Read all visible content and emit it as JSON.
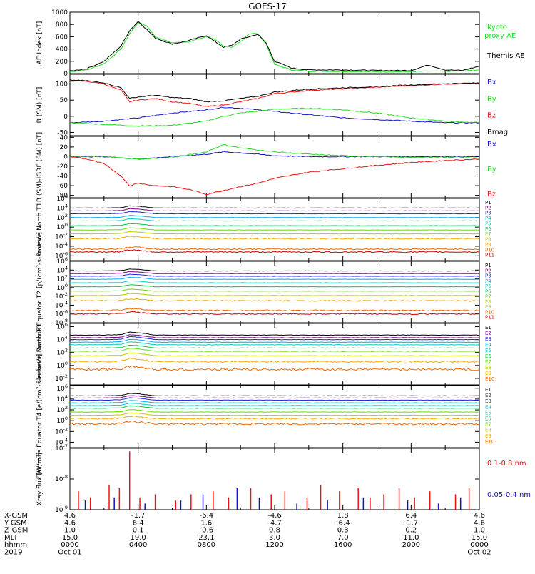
{
  "title": "GOES-17",
  "colors": {
    "black": "#000000",
    "green": "#22dd22",
    "red": "#ee1111",
    "blue": "#1111cc",
    "channel_palette": [
      "#000000",
      "#7a007a",
      "#2222dd",
      "#00aaff",
      "#00cccc",
      "#00cc44",
      "#66dd00",
      "#bbcc00",
      "#ffaa00",
      "#ee6600",
      "#cc0000"
    ]
  },
  "chart_data": [
    {
      "type": "line",
      "ylabel": "AE Index [nT]",
      "ylim": [
        0,
        1000
      ],
      "yticks": [
        {
          "v": 0,
          "label": "0"
        },
        {
          "v": 200,
          "label": "200"
        },
        {
          "v": 400,
          "label": "400"
        },
        {
          "v": 600,
          "label": "600"
        },
        {
          "v": 800,
          "label": "800"
        },
        {
          "v": 1000,
          "label": "1000"
        }
      ],
      "legend": [
        "Kyoto proxy AE",
        "Themis AE"
      ],
      "series": [
        {
          "name": "Kyoto proxy AE",
          "color": "#22dd22",
          "x": [
            0,
            1,
            2,
            3,
            3.5,
            4,
            4.5,
            5,
            6,
            7,
            8,
            8.5,
            9,
            9.5,
            10,
            10.5,
            11,
            11.5,
            12,
            13,
            14,
            16,
            18,
            20,
            21,
            22,
            23,
            24
          ],
          "y": [
            30,
            60,
            160,
            400,
            650,
            830,
            780,
            600,
            500,
            520,
            600,
            560,
            450,
            420,
            520,
            650,
            650,
            480,
            150,
            60,
            40,
            35,
            30,
            30,
            40,
            35,
            40,
            60
          ]
        },
        {
          "name": "Themis AE",
          "color": "#000000",
          "x": [
            0,
            1,
            2,
            3,
            3.5,
            4,
            4.5,
            5,
            6,
            7,
            8,
            8.5,
            9,
            9.5,
            10,
            10.5,
            11,
            11.5,
            12,
            13,
            14,
            16,
            18,
            20,
            21,
            22,
            23,
            24
          ],
          "y": [
            40,
            80,
            200,
            450,
            700,
            850,
            720,
            580,
            480,
            540,
            620,
            520,
            430,
            460,
            560,
            600,
            640,
            500,
            200,
            90,
            60,
            60,
            50,
            50,
            140,
            60,
            50,
            120
          ]
        }
      ]
    },
    {
      "type": "line",
      "ylabel": "B (SM) [nT]",
      "ylim": [
        -60,
        130
      ],
      "yticks": [
        {
          "v": -50,
          "label": "-50"
        },
        {
          "v": 0,
          "label": "0"
        },
        {
          "v": 50,
          "label": "50"
        },
        {
          "v": 100,
          "label": "100"
        }
      ],
      "legend": [
        "Bx",
        "By",
        "Bz",
        "Bmag"
      ],
      "series": [
        {
          "name": "Bx",
          "color": "#1111cc",
          "x": [
            0,
            2,
            4,
            6,
            8,
            9,
            10,
            12,
            14,
            16,
            18,
            20,
            22,
            24
          ],
          "y": [
            -20,
            -15,
            -5,
            10,
            20,
            28,
            25,
            15,
            5,
            -5,
            -10,
            -15,
            -20,
            -20
          ]
        },
        {
          "name": "By",
          "color": "#22dd22",
          "x": [
            0,
            2,
            4,
            6,
            8,
            9,
            10,
            12,
            14,
            16,
            18,
            20,
            22,
            24
          ],
          "y": [
            -20,
            -25,
            -30,
            -28,
            -15,
            0,
            10,
            22,
            25,
            20,
            10,
            -5,
            -15,
            -20
          ]
        },
        {
          "name": "Bz",
          "color": "#ee1111",
          "x": [
            0,
            1,
            2,
            3,
            3.5,
            4,
            5,
            6,
            7,
            8,
            9,
            10,
            11,
            12,
            14,
            16,
            18,
            20,
            22,
            24
          ],
          "y": [
            110,
            108,
            100,
            80,
            45,
            50,
            55,
            45,
            40,
            30,
            35,
            45,
            55,
            70,
            80,
            85,
            90,
            95,
            100,
            102
          ]
        },
        {
          "name": "Bmag",
          "color": "#000000",
          "x": [
            0,
            1,
            2,
            3,
            3.5,
            4,
            5,
            6,
            7,
            8,
            9,
            10,
            11,
            12,
            14,
            16,
            18,
            20,
            22,
            24
          ],
          "y": [
            112,
            110,
            104,
            88,
            55,
            60,
            65,
            58,
            55,
            45,
            48,
            55,
            62,
            75,
            84,
            88,
            92,
            97,
            101,
            103
          ]
        }
      ]
    },
    {
      "type": "line",
      "ylabel": "B (SM)-IGRF (SM) [nT]",
      "ylim": [
        -85,
        42
      ],
      "yticks": [
        {
          "v": -80,
          "label": "-80"
        },
        {
          "v": -60,
          "label": "-60"
        },
        {
          "v": -40,
          "label": "-40"
        },
        {
          "v": -20,
          "label": "-20"
        },
        {
          "v": 0,
          "label": "0"
        },
        {
          "v": 20,
          "label": "20"
        },
        {
          "v": 40,
          "label": "40"
        }
      ],
      "legend": [
        "Bx",
        "By",
        "Bz"
      ],
      "series": [
        {
          "name": "Bx",
          "color": "#1111cc",
          "x": [
            0,
            2,
            4,
            6,
            8,
            9,
            10,
            12,
            14,
            16,
            18,
            20,
            22,
            24
          ],
          "y": [
            0,
            0,
            -5,
            0,
            5,
            10,
            8,
            2,
            0,
            0,
            0,
            0,
            0,
            0
          ]
        },
        {
          "name": "By",
          "color": "#22dd22",
          "x": [
            0,
            2,
            4,
            6,
            8,
            9,
            10,
            12,
            14,
            16,
            18,
            20,
            22,
            24
          ],
          "y": [
            0,
            0,
            -5,
            -2,
            10,
            25,
            18,
            10,
            5,
            2,
            0,
            -2,
            -2,
            -3
          ]
        },
        {
          "name": "Bz",
          "color": "#ee1111",
          "x": [
            0,
            1,
            2,
            3,
            3.5,
            4,
            5,
            6,
            7,
            8,
            9,
            10,
            11,
            12,
            14,
            16,
            18,
            20,
            22,
            24
          ],
          "y": [
            0,
            -5,
            -15,
            -40,
            -60,
            -55,
            -60,
            -62,
            -68,
            -78,
            -70,
            -62,
            -55,
            -45,
            -32,
            -25,
            -18,
            -12,
            -8,
            -5
          ]
        }
      ]
    },
    {
      "type": "line",
      "ylabel": "Protons North T1",
      "yscale": "log",
      "ylim": [
        -7,
        6
      ],
      "yticks": [
        {
          "v": 6,
          "label": "10^6"
        },
        {
          "v": 4,
          "label": "10^4"
        },
        {
          "v": 2,
          "label": "10^2"
        },
        {
          "v": 0,
          "label": "10^0"
        },
        {
          "v": -2,
          "label": "10^-2"
        },
        {
          "v": -4,
          "label": "10^-4"
        },
        {
          "v": -6,
          "label": "10^-6"
        }
      ],
      "legend": [
        "P1",
        "P2",
        "P3",
        "P4",
        "P5",
        "P6",
        "P7",
        "P8",
        "P9",
        "P10",
        "P11"
      ],
      "base_levels": [
        4.0,
        3.4,
        2.8,
        2.0,
        1.3,
        0.3,
        -0.6,
        -1.4,
        -2.4,
        -4.6,
        -5.2
      ],
      "x": [
        0,
        2,
        3,
        3.5,
        4,
        5,
        6,
        8,
        9,
        10,
        12,
        14,
        16,
        18,
        19,
        20,
        22,
        24
      ]
    },
    {
      "type": "line",
      "ylabel": "Protons Equator T2 [p/(cm²-s-sr-keV)]",
      "yscale": "log",
      "ylim": [
        -8,
        6
      ],
      "yticks": [
        {
          "v": 6,
          "label": "10^6"
        },
        {
          "v": 4,
          "label": "10^4"
        },
        {
          "v": 2,
          "label": "10^2"
        },
        {
          "v": 0,
          "label": "10^0"
        },
        {
          "v": -2,
          "label": "10^-2"
        },
        {
          "v": -4,
          "label": "10^-4"
        },
        {
          "v": -6,
          "label": "10^-6"
        },
        {
          "v": -8,
          "label": "10^-8"
        }
      ],
      "legend": [
        "P1",
        "P2",
        "P3",
        "P4",
        "P5",
        "P6",
        "P7",
        "P8",
        "P9",
        "P10",
        "P11"
      ],
      "base_levels": [
        3.8,
        3.2,
        2.6,
        1.9,
        1.1,
        0.2,
        -0.8,
        -1.8,
        -3.0,
        -5.2,
        -6.0
      ],
      "x": [
        0,
        2,
        3,
        3.5,
        4,
        5,
        6,
        8,
        9,
        10,
        12,
        14,
        16,
        18,
        19,
        20,
        22,
        24
      ]
    },
    {
      "type": "line",
      "ylabel": "Electrons North T3",
      "yscale": "log",
      "ylim": [
        -3,
        6.5
      ],
      "yticks": [
        {
          "v": 6,
          "label": "10^6"
        },
        {
          "v": 4,
          "label": "10^4"
        },
        {
          "v": 2,
          "label": "10^2"
        },
        {
          "v": 0,
          "label": "10^0"
        },
        {
          "v": -2,
          "label": "10^-2"
        }
      ],
      "legend": [
        "E1",
        "E2",
        "E3",
        "E4",
        "E5",
        "E6",
        "E7",
        "E8",
        "E9",
        "E10"
      ],
      "base_levels": [
        4.7,
        4.3,
        4.0,
        3.6,
        3.2,
        2.7,
        2.2,
        1.5,
        0.6,
        -0.6
      ],
      "x": [
        0,
        2,
        3,
        3.5,
        4,
        5,
        6,
        8,
        9,
        10,
        11,
        12,
        14,
        16,
        18,
        20,
        22,
        24
      ]
    },
    {
      "type": "line",
      "ylabel": "Electrons Equator T4 [e/(cm²-s-sr-keV)]",
      "yscale": "log",
      "ylim": [
        -5,
        6.5
      ],
      "yticks": [
        {
          "v": 6,
          "label": "10^6"
        },
        {
          "v": 4,
          "label": "10^4"
        },
        {
          "v": 2,
          "label": "10^2"
        },
        {
          "v": 0,
          "label": "10^0"
        },
        {
          "v": -2,
          "label": "10^-2"
        },
        {
          "v": -4,
          "label": "10^-4"
        }
      ],
      "legend": [
        "E1",
        "E2",
        "E3",
        "E4",
        "E5",
        "E6",
        "E7",
        "E8",
        "E9",
        "E10"
      ],
      "base_levels": [
        4.6,
        4.2,
        3.8,
        3.3,
        2.8,
        2.3,
        1.6,
        1.0,
        0.4,
        -0.6
      ],
      "x": [
        0,
        2,
        3,
        3.5,
        4,
        5,
        6,
        8,
        9,
        10,
        11,
        12,
        14,
        16,
        18,
        20,
        22,
        24
      ]
    },
    {
      "type": "scatter",
      "ylabel": "Xray flux [W/m²]",
      "yscale": "log",
      "ylim": [
        -9,
        -7
      ],
      "yticks": [
        {
          "v": -7,
          "label": "10^-7"
        },
        {
          "v": -8,
          "label": "10^-8"
        },
        {
          "v": -9,
          "label": "10^-9"
        }
      ],
      "legend": [
        "0.1-0.8 nm",
        "0.05-0.4 nm"
      ],
      "series": [
        {
          "name": "0.1-0.8 nm",
          "color": "#ee1111",
          "x": [
            0.5,
            1.2,
            2.3,
            2.9,
            3.5,
            4.1,
            5.0,
            6.2,
            7.1,
            8.4,
            9.3,
            10.6,
            11.8,
            12.6,
            13.9,
            14.7,
            15.8,
            16.9,
            17.6,
            18.4,
            19.3,
            20.2,
            21.1,
            22.6,
            23.4
          ],
          "y": [
            -8.4,
            -8.6,
            -8.2,
            -8.3,
            -7.1,
            -8.6,
            -8.5,
            -8.7,
            -8.5,
            -8.4,
            -8.6,
            -8.3,
            -8.5,
            -8.4,
            -8.6,
            -8.2,
            -8.4,
            -8.3,
            -8.6,
            -8.5,
            -8.3,
            -8.6,
            -8.4,
            -8.5,
            -8.3
          ]
        },
        {
          "name": "0.05-0.4 nm",
          "color": "#1111cc",
          "x": [
            0.9,
            2.6,
            4.4,
            6.5,
            7.8,
            9.8,
            11.1,
            13.3,
            15.1,
            17.2,
            19.8,
            21.6,
            22.9
          ],
          "y": [
            -8.7,
            -8.6,
            -8.8,
            -8.7,
            -8.5,
            -8.3,
            -8.6,
            -8.8,
            -8.7,
            -8.6,
            -8.7,
            -8.8,
            -8.6
          ]
        }
      ]
    }
  ],
  "x_axis": {
    "range": [
      0,
      24
    ],
    "row_labels": [
      "X-GSM",
      "Y-GSM",
      "Z-GSM",
      "MLT",
      "hhmm",
      "2019"
    ],
    "columns": [
      {
        "x": 0,
        "values": [
          "4.6",
          "4.6",
          "1.0",
          "15.0",
          "0000",
          "Oct 01"
        ]
      },
      {
        "x": 4,
        "values": [
          "-1.7",
          "6.4",
          "0.1",
          "19.0",
          "0400",
          ""
        ]
      },
      {
        "x": 8,
        "values": [
          "-6.4",
          "1.6",
          "-0.6",
          "23.1",
          "0800",
          ""
        ]
      },
      {
        "x": 12,
        "values": [
          "-4.6",
          "-4.7",
          "0.8",
          "3.0",
          "1200",
          ""
        ]
      },
      {
        "x": 16,
        "values": [
          "1.8",
          "-6.4",
          "0.3",
          "7.0",
          "1600",
          ""
        ]
      },
      {
        "x": 20,
        "values": [
          "6.4",
          "-1.7",
          "0.2",
          "11.0",
          "2000",
          ""
        ]
      },
      {
        "x": 24,
        "values": [
          "4.6",
          "4.6",
          "1.0",
          "15.0",
          "0000",
          "Oct 02"
        ]
      }
    ]
  }
}
